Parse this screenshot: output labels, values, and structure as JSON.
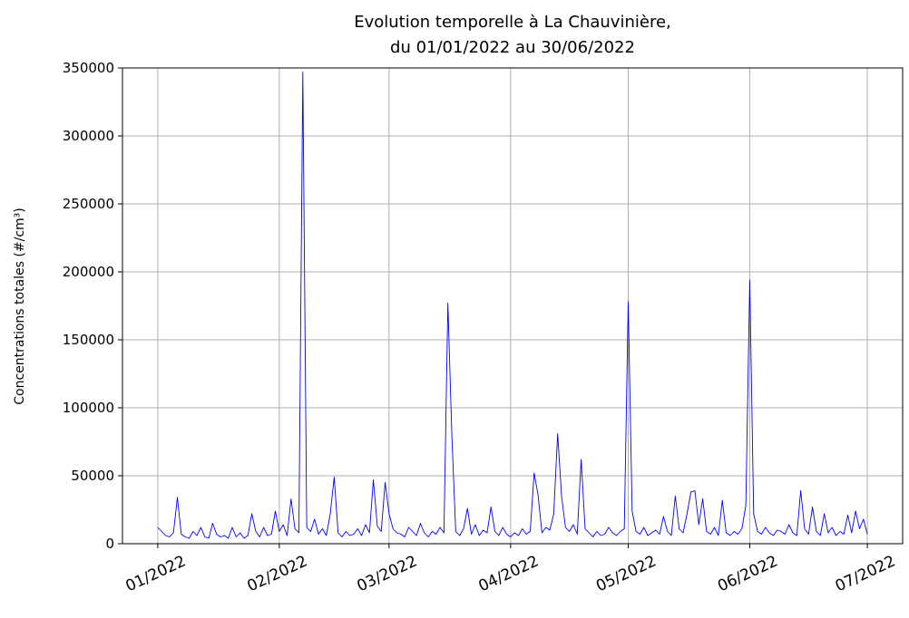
{
  "chart_data": {
    "type": "line",
    "title": [
      "Evolution temporelle à La Chauvinière,",
      "du 01/01/2022 au 30/06/2022"
    ],
    "y_label": "Concentrations totales (#/cm³)",
    "x": [
      0,
      1,
      2,
      3,
      4,
      5,
      6,
      7,
      8,
      9,
      10,
      11,
      12,
      13,
      14,
      15,
      16,
      17,
      18,
      19,
      20,
      21,
      22,
      23,
      24,
      25,
      26,
      27,
      28,
      29,
      30,
      31,
      32,
      33,
      34,
      35,
      36,
      37,
      38,
      39,
      40,
      41,
      42,
      43,
      44,
      45,
      46,
      47,
      48,
      49,
      50,
      51,
      52,
      53,
      54,
      55,
      56,
      57,
      58,
      59,
      60,
      61,
      62,
      63,
      64,
      65,
      66,
      67,
      68,
      69,
      70,
      71,
      72,
      73,
      74,
      75,
      76,
      77,
      78,
      79,
      80,
      81,
      82,
      83,
      84,
      85,
      86,
      87,
      88,
      89,
      90,
      91,
      92,
      93,
      94,
      95,
      96,
      97,
      98,
      99,
      100,
      101,
      102,
      103,
      104,
      105,
      106,
      107,
      108,
      109,
      110,
      111,
      112,
      113,
      114,
      115,
      116,
      117,
      118,
      119,
      120,
      121,
      122,
      123,
      124,
      125,
      126,
      127,
      128,
      129,
      130,
      131,
      132,
      133,
      134,
      135,
      136,
      137,
      138,
      139,
      140,
      141,
      142,
      143,
      144,
      145,
      146,
      147,
      148,
      149,
      150,
      151,
      152,
      153,
      154,
      155,
      156,
      157,
      158,
      159,
      160,
      161,
      162,
      163,
      164,
      165,
      166,
      167,
      168,
      169,
      170,
      171,
      172,
      173,
      174,
      175,
      176,
      177,
      178,
      179,
      180,
      181
    ],
    "series": [
      {
        "color": "#0000ff",
        "values": [
          12000,
          9000,
          6000,
          5000,
          8000,
          34000,
          7000,
          5000,
          4000,
          9000,
          6000,
          12000,
          5000,
          4000,
          15000,
          7000,
          5000,
          6000,
          4000,
          12000,
          5000,
          8000,
          4000,
          6000,
          22000,
          9000,
          5000,
          12000,
          6000,
          7000,
          24000,
          9000,
          14000,
          6000,
          33000,
          11000,
          8000,
          347000,
          12000,
          9000,
          18000,
          7000,
          11000,
          6000,
          22000,
          49000,
          8000,
          5000,
          9000,
          6000,
          7000,
          11000,
          6000,
          14000,
          8000,
          47000,
          13000,
          9000,
          45000,
          22000,
          11000,
          8000,
          7000,
          5000,
          12000,
          9000,
          6000,
          15000,
          8000,
          5000,
          9000,
          7000,
          12000,
          8000,
          177000,
          81000,
          9000,
          6000,
          11000,
          26000,
          7000,
          14000,
          6000,
          10000,
          8000,
          27000,
          9000,
          6000,
          12000,
          7000,
          5000,
          8000,
          6000,
          11000,
          7000,
          9000,
          52000,
          36000,
          8000,
          12000,
          10000,
          22000,
          81000,
          35000,
          12000,
          9000,
          14000,
          7000,
          62000,
          11000,
          8000,
          5000,
          9000,
          6000,
          7000,
          12000,
          8000,
          6000,
          9000,
          11000,
          178000,
          24000,
          9000,
          7000,
          12000,
          6000,
          8000,
          10000,
          7000,
          20000,
          9000,
          6000,
          35000,
          11000,
          8000,
          22000,
          38000,
          39000,
          14000,
          33000,
          9000,
          7000,
          12000,
          6000,
          32000,
          8000,
          6000,
          9000,
          7000,
          11000,
          28000,
          194000,
          22000,
          9000,
          7000,
          12000,
          8000,
          6000,
          10000,
          9000,
          7000,
          14000,
          8000,
          6000,
          39000,
          11000,
          7000,
          27000,
          9000,
          6000,
          22000,
          8000,
          12000,
          6000,
          9000,
          7000,
          21000,
          8000,
          24000,
          11000,
          18000,
          7000
        ]
      }
    ],
    "xlim": [
      -9,
      190
    ],
    "xticks": [
      {
        "value": 0,
        "label": "01/2022"
      },
      {
        "value": 31,
        "label": "02/2022"
      },
      {
        "value": 59,
        "label": "03/2022"
      },
      {
        "value": 90,
        "label": "04/2022"
      },
      {
        "value": 120,
        "label": "05/2022"
      },
      {
        "value": 151,
        "label": "06/2022"
      },
      {
        "value": 181,
        "label": "07/2022"
      }
    ],
    "ylim": [
      0,
      350000
    ],
    "yticks": [
      0,
      50000,
      100000,
      150000,
      200000,
      250000,
      300000,
      350000
    ],
    "grid": true
  }
}
